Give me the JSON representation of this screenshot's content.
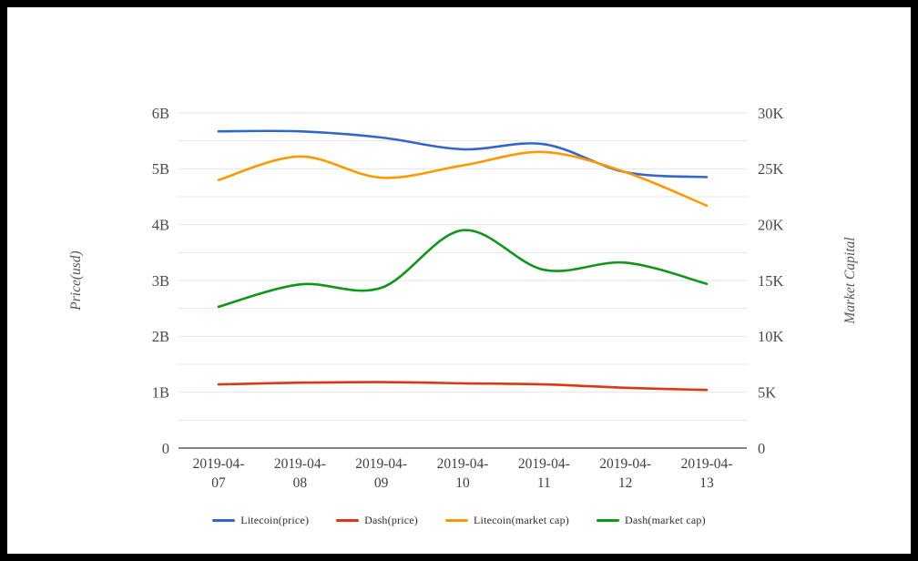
{
  "chart_data": {
    "type": "line",
    "smooth": true,
    "grid": "horizontal gridlines, minor line at every half step",
    "grid_color": "#e6e6e6",
    "axis_line_color": "#3c3c3c",
    "tick_label_color": "#4a4a4a",
    "axis_title_color": "#565656",
    "x": [
      "2019-04-07",
      "2019-04-08",
      "2019-04-09",
      "2019-04-10",
      "2019-04-11",
      "2019-04-12",
      "2019-04-13"
    ],
    "left_axis": {
      "label": "Price(usd)",
      "ticks": [
        "0",
        "1B",
        "2B",
        "3B",
        "4B",
        "5B",
        "6B"
      ],
      "min": 0,
      "max": 6
    },
    "right_axis": {
      "label": "Market Capital",
      "ticks": [
        "0",
        "5K",
        "10K",
        "15K",
        "20K",
        "25K",
        "30K"
      ],
      "min": 0,
      "max": 30
    },
    "legend_position": "bottom",
    "series": [
      {
        "name": "Litecoin(price)",
        "color": "#3366cc",
        "axis": "left",
        "unit": "B",
        "values": [
          5.67,
          5.67,
          5.56,
          5.35,
          5.44,
          4.94,
          4.85
        ]
      },
      {
        "name": "Dash(price)",
        "color": "#dc3912",
        "axis": "left",
        "unit": "B",
        "values": [
          1.14,
          1.17,
          1.18,
          1.16,
          1.14,
          1.08,
          1.04
        ]
      },
      {
        "name": "Litecoin(market cap)",
        "color": "#ff9900",
        "axis": "right",
        "unit": "K",
        "values": [
          24.0,
          26.1,
          24.2,
          25.3,
          26.5,
          24.7,
          21.7
        ]
      },
      {
        "name": "Dash(market cap)",
        "color": "#109618",
        "axis": "right",
        "unit": "K",
        "values": [
          12.65,
          14.65,
          14.35,
          19.5,
          15.95,
          16.6,
          14.7
        ]
      }
    ]
  }
}
